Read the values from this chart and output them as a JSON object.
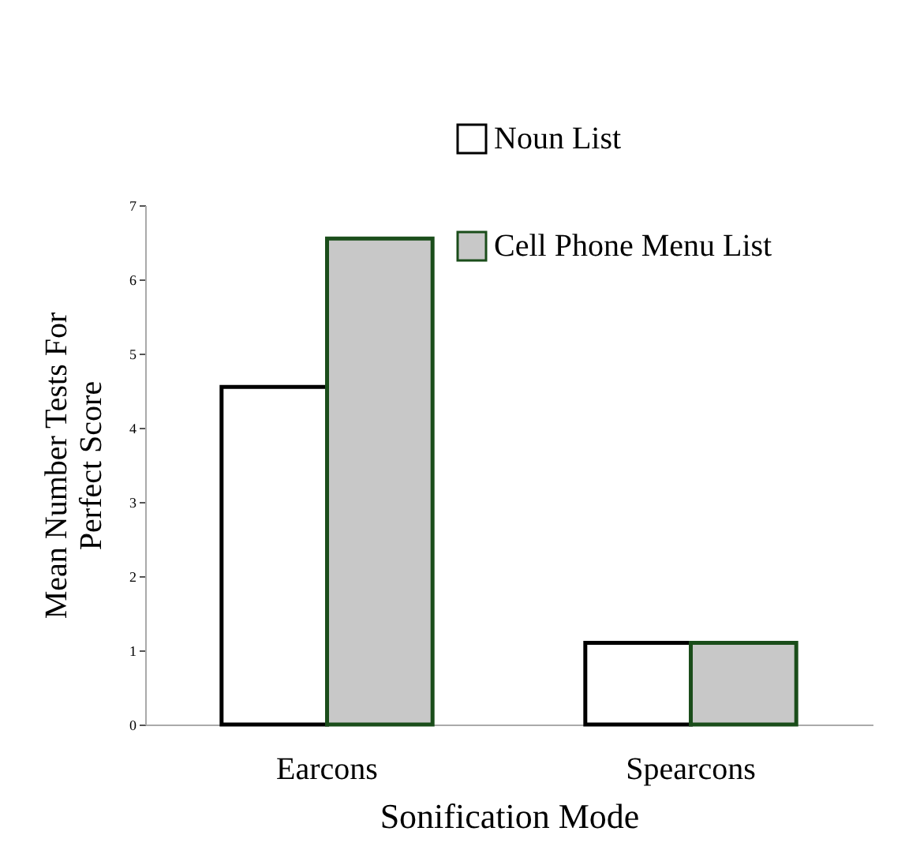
{
  "chart_data": {
    "type": "bar",
    "xlabel": "Sonification Mode",
    "ylabel": "Mean Number Tests For Perfect Score",
    "categories": [
      "Earcons",
      "Spearcons"
    ],
    "series": [
      {
        "name": "Noun List",
        "color": "#ffffff",
        "values": [
          4.55,
          1.1
        ]
      },
      {
        "name": "Cell Phone Menu List",
        "color": "#c8c8c8",
        "values": [
          6.55,
          1.1
        ]
      }
    ],
    "ylim": [
      0,
      7
    ],
    "yticks": [
      0,
      1,
      2,
      3,
      4,
      5,
      6,
      7
    ],
    "grid": false,
    "legend": "top right"
  }
}
